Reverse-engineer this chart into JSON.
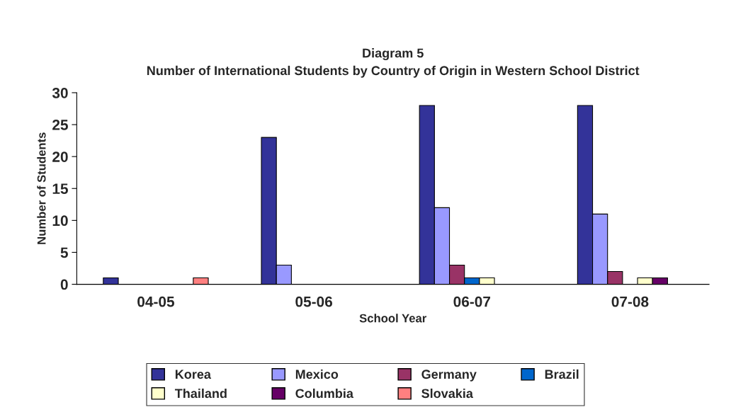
{
  "chart_data": {
    "type": "bar",
    "title": "Diagram 5",
    "subtitle": "Number of International Students by Country of Origin in Western School District",
    "xlabel": "School Year",
    "ylabel": "Number of Students",
    "categories": [
      "04-05",
      "05-06",
      "06-07",
      "07-08"
    ],
    "series": [
      {
        "name": "Korea",
        "color": "#333399",
        "values": [
          1,
          23,
          28,
          28
        ]
      },
      {
        "name": "Mexico",
        "color": "#9999ff",
        "values": [
          0,
          3,
          12,
          11
        ]
      },
      {
        "name": "Germany",
        "color": "#993366",
        "values": [
          0,
          0,
          3,
          2
        ]
      },
      {
        "name": "Brazil",
        "color": "#0066cc",
        "values": [
          0,
          0,
          1,
          0
        ]
      },
      {
        "name": "Thailand",
        "color": "#ffffcc",
        "values": [
          0,
          0,
          1,
          1
        ]
      },
      {
        "name": "Columbia",
        "color": "#660066",
        "values": [
          0,
          0,
          0,
          1
        ]
      },
      {
        "name": "Slovakia",
        "color": "#ff8080",
        "values": [
          1,
          0,
          0,
          0
        ]
      }
    ],
    "ylim": [
      0,
      30
    ],
    "yticks": [
      0,
      5,
      10,
      15,
      20,
      25,
      30
    ],
    "grid": false,
    "legend": "bottom"
  }
}
